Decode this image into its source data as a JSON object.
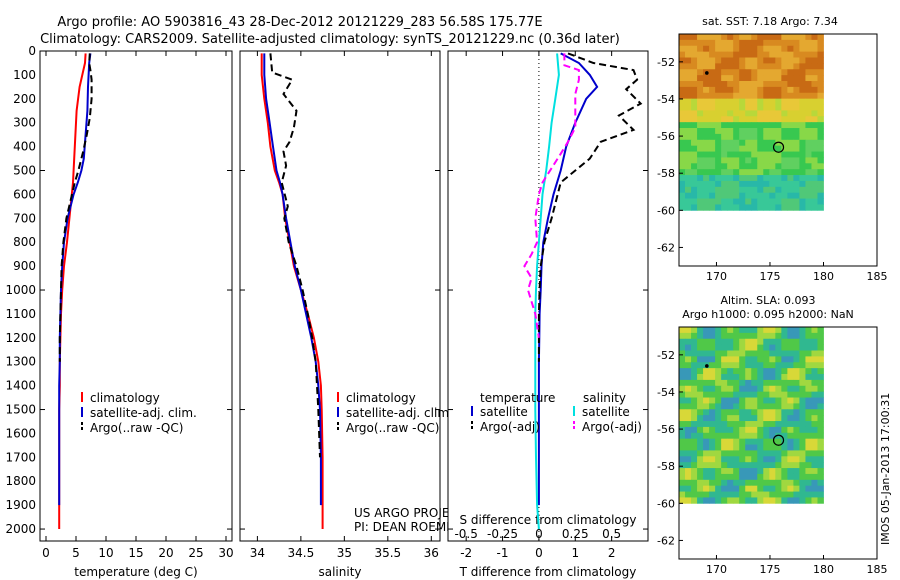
{
  "header": {
    "line1": "Argo profile: AO 5903816_43 28-Dec-2012 20121229_283 56.58S 175.77E",
    "line2": "Climatology: CARS2009. Satellite-adjusted climatology: synTS_20121229.nc (0.36d later)"
  },
  "colors": {
    "climatology": "#ff0000",
    "satellite": "#0000cc",
    "argo": "#000000",
    "salinity_satellite": "#00e0e0",
    "salinity_argo": "#ff00ff"
  },
  "chart_data": [
    {
      "id": "temperature",
      "type": "line",
      "title": "",
      "xlabel": "temperature (deg C)",
      "ylabel": "",
      "xlim": [
        -1,
        31
      ],
      "ylim": [
        2050,
        0
      ],
      "y_reversed": true,
      "xticks": [
        0,
        5,
        10,
        15,
        20,
        25,
        30
      ],
      "yticks": [
        0,
        100,
        200,
        300,
        400,
        500,
        600,
        700,
        800,
        900,
        1000,
        1100,
        1200,
        1300,
        1400,
        1500,
        1600,
        1700,
        1800,
        1900,
        2000
      ],
      "legend": [
        "climatology",
        "satellite-adj. clim.",
        "Argo(..raw -QC)"
      ],
      "legend_position": "lower-right",
      "series": [
        {
          "name": "climatology",
          "color": "#ff0000",
          "style": "solid",
          "x": [
            6.6,
            6.5,
            5.6,
            5.1,
            4.9,
            4.7,
            4.6,
            4.5,
            4.3,
            3.9,
            3.5,
            3.0,
            2.7,
            2.5,
            2.4,
            2.3,
            2.3,
            2.2,
            2.2,
            2.2,
            2.2,
            2.2,
            2.2
          ],
          "y": [
            10,
            50,
            150,
            250,
            350,
            450,
            500,
            550,
            600,
            700,
            800,
            900,
            1000,
            1100,
            1200,
            1300,
            1400,
            1500,
            1600,
            1700,
            1800,
            1900,
            2000
          ]
        },
        {
          "name": "satellite-adj. clim.",
          "color": "#0000cc",
          "style": "solid",
          "x": [
            7.4,
            7.2,
            7.0,
            6.9,
            6.6,
            6.3,
            5.9,
            5.3,
            4.6,
            3.6,
            3.0,
            2.7,
            2.5,
            2.4,
            2.3,
            2.3,
            2.2,
            2.2,
            2.2,
            2.2,
            2.2,
            2.2
          ],
          "y": [
            10,
            50,
            150,
            250,
            350,
            450,
            500,
            550,
            600,
            700,
            800,
            900,
            1000,
            1100,
            1200,
            1300,
            1400,
            1500,
            1600,
            1700,
            1800,
            1900
          ]
        },
        {
          "name": "Argo(..raw -QC)",
          "color": "#000000",
          "style": "dashed",
          "x": [
            7.3,
            7.2,
            7.4,
            7.6,
            7.6,
            7.3,
            6.8,
            6.2,
            5.4,
            4.8,
            3.4,
            2.9,
            2.6,
            2.5,
            2.4,
            2.3,
            2.3
          ],
          "y": [
            10,
            50,
            80,
            120,
            200,
            280,
            350,
            420,
            500,
            550,
            700,
            800,
            900,
            1000,
            1100,
            1200,
            1300
          ]
        }
      ]
    },
    {
      "id": "salinity",
      "type": "line",
      "title": "",
      "xlabel": "salinity",
      "ylabel": "",
      "xlim": [
        33.8,
        36.1
      ],
      "ylim": [
        2050,
        0
      ],
      "y_reversed": true,
      "xticks": [
        34,
        34.5,
        35,
        35.5,
        36
      ],
      "xtick_labels": [
        "34",
        "34.5",
        "35",
        "35.5",
        "36"
      ],
      "legend": [
        "climatology",
        "satellite-adj. clim.",
        "Argo(..raw -QC)"
      ],
      "legend_position": "lower-right",
      "annotations": [
        "US ARGO PROJECT",
        "PI: DEAN ROEMMICH"
      ],
      "series": [
        {
          "name": "climatology",
          "color": "#ff0000",
          "style": "solid",
          "x": [
            34.05,
            34.05,
            34.08,
            34.12,
            34.15,
            34.2,
            34.25,
            34.29,
            34.32,
            34.37,
            34.42,
            34.5,
            34.58,
            34.65,
            34.7,
            34.73,
            34.74,
            34.75,
            34.75,
            34.75
          ],
          "y": [
            10,
            100,
            200,
            300,
            400,
            500,
            550,
            600,
            700,
            800,
            900,
            1000,
            1100,
            1200,
            1300,
            1400,
            1500,
            1700,
            1900,
            2000
          ]
        },
        {
          "name": "satellite-adj. clim.",
          "color": "#0000cc",
          "style": "solid",
          "x": [
            34.08,
            34.08,
            34.1,
            34.14,
            34.18,
            34.22,
            34.26,
            34.29,
            34.33,
            34.38,
            34.43,
            34.5,
            34.56,
            34.62,
            34.67,
            34.7,
            34.72,
            34.73,
            34.73
          ],
          "y": [
            10,
            100,
            200,
            300,
            400,
            500,
            550,
            600,
            700,
            800,
            900,
            1000,
            1100,
            1200,
            1300,
            1400,
            1500,
            1700,
            1900
          ]
        },
        {
          "name": "Argo(..raw -QC)",
          "color": "#000000",
          "style": "dashed",
          "x": [
            34.15,
            34.17,
            34.4,
            34.3,
            34.45,
            34.42,
            34.37,
            34.3,
            34.33,
            34.28,
            34.35,
            34.31,
            34.36,
            34.45,
            34.52,
            34.58,
            34.63,
            34.67,
            34.7,
            34.72
          ],
          "y": [
            10,
            90,
            120,
            180,
            250,
            320,
            380,
            420,
            480,
            550,
            650,
            700,
            800,
            900,
            1000,
            1100,
            1200,
            1300,
            1500,
            1700
          ]
        }
      ]
    },
    {
      "id": "difference",
      "type": "line",
      "title": "",
      "xlabel": "T difference from climatology",
      "xlabel_top": "S difference from climatology",
      "ylabel": "",
      "xlim": [
        -2.5,
        3.0
      ],
      "ylim": [
        2050,
        0
      ],
      "y_reversed": true,
      "xticks": [
        -2,
        -1,
        0,
        1,
        2
      ],
      "xtick_labels": [
        "-2",
        "-1",
        "0",
        "1",
        "2"
      ],
      "sticks_top_labels": [
        "-0.5",
        "-0.25",
        "0",
        "0.25",
        "0.5"
      ],
      "legend_headers": [
        "temperature",
        "salinity"
      ],
      "legend": [
        "satellite",
        "Argo(-adj)",
        "satellite",
        "Argo(-adj)"
      ],
      "legend_position": "lower-center",
      "series": [
        {
          "name": "satellite",
          "group": "temperature",
          "color": "#0000cc",
          "style": "solid",
          "x": [
            0.6,
            1.1,
            1.4,
            1.6,
            1.3,
            1.0,
            0.75,
            0.6,
            0.4,
            0.25,
            0.12,
            0.07,
            0.05,
            0.02,
            0.01,
            0.0,
            0.0,
            0.0,
            0.0,
            0.0,
            0.0,
            0.0
          ],
          "y": [
            10,
            50,
            100,
            150,
            200,
            300,
            400,
            500,
            600,
            700,
            800,
            900,
            1000,
            1100,
            1200,
            1300,
            1400,
            1500,
            1600,
            1700,
            1800,
            1900
          ]
        },
        {
          "name": "Argo(-adj)",
          "group": "temperature",
          "color": "#000000",
          "style": "dashed",
          "x": [
            0.8,
            1.5,
            2.6,
            2.7,
            2.4,
            2.8,
            2.2,
            2.6,
            1.7,
            1.4,
            1.0,
            0.6,
            0.35,
            0.15,
            0.05,
            0.02,
            0.0,
            0.0,
            0.0
          ],
          "y": [
            10,
            50,
            80,
            120,
            160,
            220,
            270,
            330,
            380,
            450,
            500,
            550,
            700,
            800,
            900,
            1000,
            1100,
            1200,
            1300
          ]
        },
        {
          "name": "satellite",
          "group": "salinity",
          "color": "#00e0e0",
          "style": "solid",
          "x": [
            0.5,
            0.55,
            0.5,
            0.45,
            0.35,
            0.28,
            0.2,
            0.1,
            0.05,
            0.0,
            -0.05,
            -0.08,
            -0.1,
            -0.1,
            -0.1,
            -0.1,
            -0.1,
            -0.08,
            -0.05,
            0.0
          ],
          "y": [
            10,
            100,
            150,
            200,
            300,
            400,
            500,
            600,
            700,
            800,
            900,
            1000,
            1100,
            1200,
            1300,
            1400,
            1500,
            1700,
            1900,
            2000
          ]
        },
        {
          "name": "Argo(-adj)",
          "group": "salinity",
          "color": "#ff00ff",
          "style": "dashed",
          "x": [
            0.7,
            0.7,
            1.1,
            1.1,
            1.0,
            1.0,
            0.8,
            0.6,
            0.1,
            0.0,
            -0.1,
            -0.05,
            -0.2,
            -0.4,
            -0.2,
            -0.3,
            -0.1,
            0.0
          ],
          "y": [
            10,
            60,
            80,
            120,
            180,
            320,
            380,
            430,
            550,
            600,
            700,
            800,
            850,
            900,
            950,
            1000,
            1100,
            1200
          ]
        }
      ]
    },
    {
      "id": "sst_map",
      "type": "heatmap",
      "title": "sat. SST: 7.18 Argo: 7.34",
      "xlim": [
        166.5,
        185
      ],
      "ylim": [
        -63,
        -50.5
      ],
      "xticks": [
        170,
        175,
        180,
        185
      ],
      "yticks": [
        -52,
        -54,
        -56,
        -58,
        -60,
        -62
      ],
      "data_extent": {
        "lon": [
          166.5,
          180
        ],
        "lat": [
          -60,
          -50.5
        ]
      },
      "markers": [
        {
          "kind": "dot",
          "lon": 169.1,
          "lat": -52.6
        },
        {
          "kind": "circle",
          "lon": 175.8,
          "lat": -56.6
        }
      ]
    },
    {
      "id": "sla_map",
      "type": "heatmap",
      "title": "Altim. SLA: 0.093",
      "subtitle": "Argo h1000: 0.095 h2000: NaN",
      "xlim": [
        166.5,
        185
      ],
      "ylim": [
        -63,
        -50.5
      ],
      "xticks": [
        170,
        175,
        180,
        185
      ],
      "yticks": [
        -52,
        -54,
        -56,
        -58,
        -60,
        -62
      ],
      "data_extent": {
        "lon": [
          166.5,
          180
        ],
        "lat": [
          -60,
          -50.5
        ]
      },
      "markers": [
        {
          "kind": "dot",
          "lon": 169.1,
          "lat": -52.6
        },
        {
          "kind": "circle",
          "lon": 175.8,
          "lat": -56.6
        }
      ]
    }
  ],
  "side_stamp": "IMOS 05-Jan-2013 17:00:31"
}
